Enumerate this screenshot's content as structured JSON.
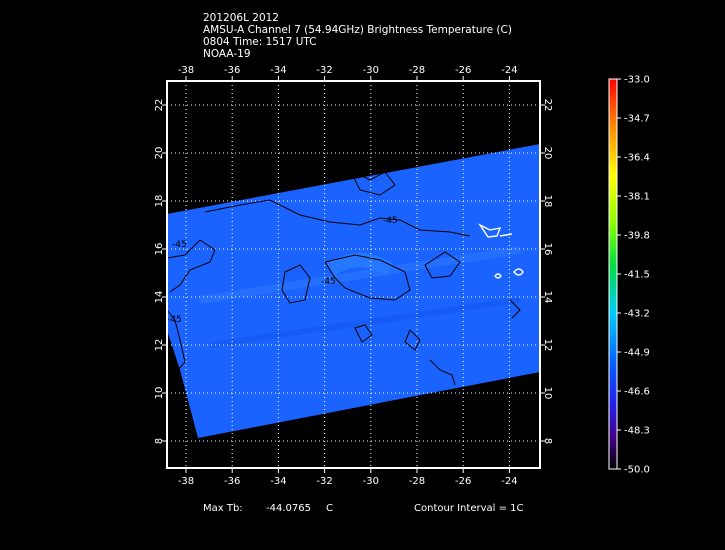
{
  "header": {
    "line1": "201206L 2012",
    "line2": "AMSU-A Channel 7 (54.94GHz) Brightness Temperature (C)",
    "line3": "0804 Time: 1517 UTC",
    "line4": "NOAA-19"
  },
  "footer": {
    "max_tb_label": "Max Tb:",
    "max_tb_value": "-44.0765",
    "max_tb_unit": "C",
    "contour_interval": "Contour Interval = 1C"
  },
  "map": {
    "lon_ticks": [
      "-38",
      "-36",
      "-34",
      "-32",
      "-30",
      "-28",
      "-26",
      "-24"
    ],
    "lat_ticks": [
      "8",
      "10",
      "12",
      "14",
      "16",
      "18",
      "20",
      "22"
    ],
    "contour_labels": [
      "-45",
      "-45",
      "-45",
      "-45"
    ],
    "swath_color": "#1a63ff",
    "contour_color": "#000000",
    "warm_contour_color": "#ffffff"
  },
  "colorbar": {
    "labels": [
      "-33.0",
      "-34.7",
      "-36.4",
      "-38.1",
      "-39.8",
      "-41.5",
      "-43.2",
      "-44.9",
      "-46.6",
      "-48.3",
      "-50.0"
    ],
    "colors": [
      "#ff0000",
      "#ff8800",
      "#ffff00",
      "#88ff00",
      "#00dd00",
      "#00dd88",
      "#00ccff",
      "#0044ff",
      "#4400cc",
      "#440066",
      "#000000"
    ]
  }
}
